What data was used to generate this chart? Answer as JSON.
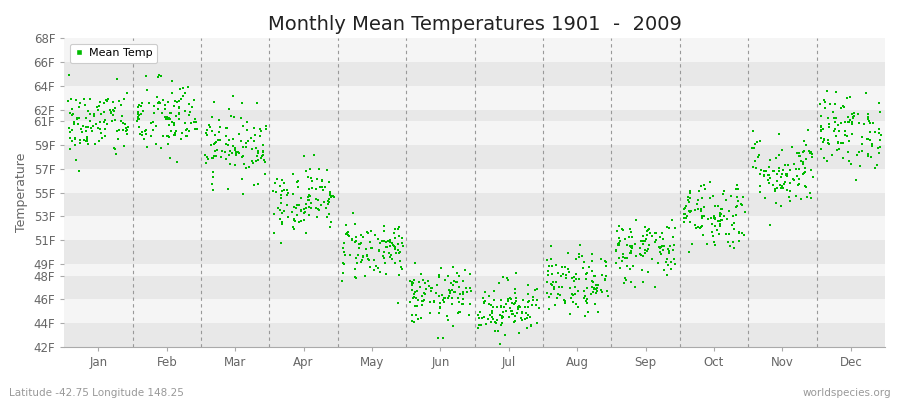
{
  "title": "Monthly Mean Temperatures 1901  -  2009",
  "ylabel": "Temperature",
  "subtitle_left": "Latitude -42.75 Longitude 148.25",
  "subtitle_right": "worldspecies.org",
  "legend_label": "Mean Temp",
  "yticks": [
    42,
    44,
    46,
    48,
    49,
    51,
    53,
    55,
    57,
    59,
    61,
    62,
    64,
    66,
    68
  ],
  "ytick_labels": [
    "42F",
    "44F",
    "46F",
    "48F",
    "49F",
    "51F",
    "53F",
    "55F",
    "57F",
    "59F",
    "61F",
    "62F",
    "64F",
    "66F",
    "68F"
  ],
  "ylim": [
    42,
    68
  ],
  "months": [
    "Jan",
    "Feb",
    "Mar",
    "Apr",
    "May",
    "Jun",
    "Jul",
    "Aug",
    "Sep",
    "Oct",
    "Nov",
    "Dec"
  ],
  "dot_color": "#00bb00",
  "bg_color": "#ffffff",
  "band_color_light": "#e8e8e8",
  "band_color_white": "#f5f5f5",
  "title_fontsize": 14,
  "axis_label_fontsize": 9,
  "tick_fontsize": 8.5,
  "n_years": 109,
  "monthly_means": [
    60.8,
    61.2,
    59.0,
    54.5,
    50.2,
    46.2,
    45.3,
    47.2,
    50.2,
    53.2,
    56.8,
    60.2
  ],
  "monthly_stds": [
    1.5,
    1.7,
    1.5,
    1.4,
    1.3,
    1.2,
    1.2,
    1.3,
    1.4,
    1.5,
    1.6,
    1.6
  ],
  "random_seed": 42,
  "dot_size": 2.5
}
